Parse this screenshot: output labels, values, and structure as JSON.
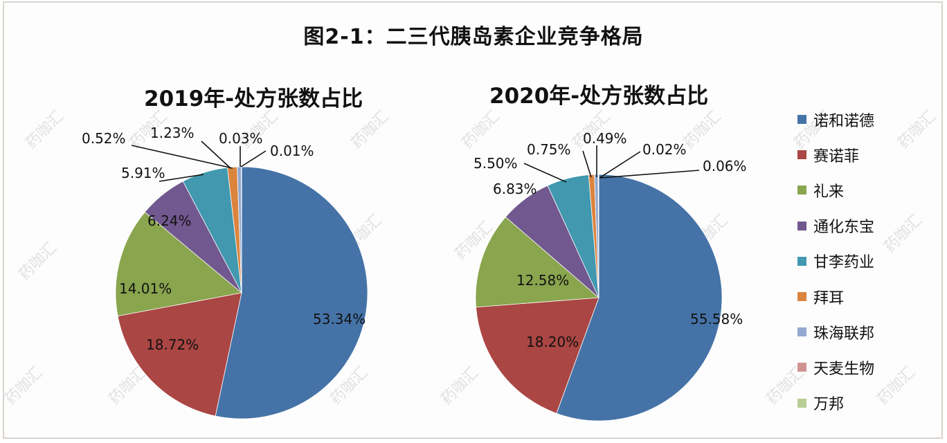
{
  "title": "图2-1：二三代胰岛素企业竞争格局",
  "watermark": "药咖汇",
  "legend": [
    {
      "label": "诺和诺德",
      "color": "#4573a7"
    },
    {
      "label": "赛诺菲",
      "color": "#aa4643"
    },
    {
      "label": "礼来",
      "color": "#89a54e"
    },
    {
      "label": "通化东宝",
      "color": "#71588f"
    },
    {
      "label": "甘李药业",
      "color": "#4198af"
    },
    {
      "label": "拜耳",
      "color": "#db843d"
    },
    {
      "label": "珠海联邦",
      "color": "#93a9cf"
    },
    {
      "label": "天麦生物",
      "color": "#d19392"
    },
    {
      "label": "万邦",
      "color": "#b9cd96"
    }
  ],
  "chart_data": [
    {
      "type": "pie",
      "title": "2019年-处方张数占比",
      "categories": [
        "诺和诺德",
        "赛诺菲",
        "礼来",
        "通化东宝",
        "甘李药业",
        "拜耳",
        "珠海联邦",
        "天麦生物",
        "万邦"
      ],
      "values": [
        53.34,
        18.72,
        14.01,
        6.24,
        5.91,
        1.23,
        0.52,
        0.03,
        0.01
      ],
      "labels": [
        "53.34%",
        "18.72%",
        "14.01%",
        "6.24%",
        "5.91%",
        "1.23%",
        "0.52%",
        "0.03%",
        "0.01%"
      ],
      "unit": "%"
    },
    {
      "type": "pie",
      "title": "2020年-处方张数占比",
      "categories": [
        "诺和诺德",
        "赛诺菲",
        "礼来",
        "通化东宝",
        "甘李药业",
        "拜耳",
        "珠海联邦",
        "天麦生物",
        "万邦"
      ],
      "values": [
        55.58,
        18.2,
        12.58,
        6.83,
        5.5,
        0.75,
        0.49,
        0.02,
        0.06
      ],
      "labels": [
        "55.58%",
        "18.20%",
        "12.58%",
        "6.83%",
        "5.50%",
        "0.75%",
        "0.49%",
        "0.02%",
        "0.06%"
      ],
      "unit": "%"
    }
  ]
}
